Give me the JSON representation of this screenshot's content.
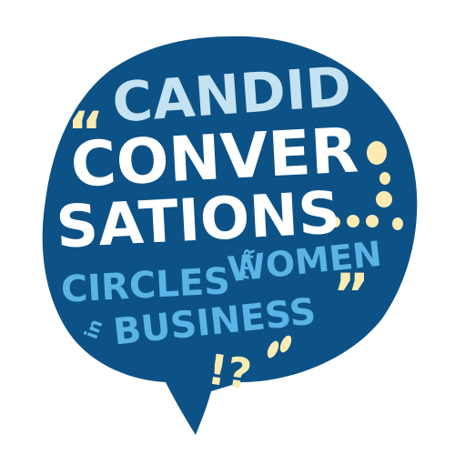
{
  "logo": {
    "line1": "CANDID",
    "line2": "CONVER",
    "line3": "SATIONS",
    "line4": "CIRCLES",
    "line4_small": "FOR",
    "line4_end": "WOMEN",
    "line5_small": "in",
    "line5": "BUSINESS",
    "open_quote": "“",
    "close_quote": "”",
    "punct": "!?",
    "colors": {
      "bubble": "#0d5286",
      "light_blue_text": "#c4e2f2",
      "white_text": "#ffffff",
      "mid_blue_text": "#5ab4e6",
      "cream_accent": "#fbebb2",
      "background": "#ffffff"
    }
  }
}
